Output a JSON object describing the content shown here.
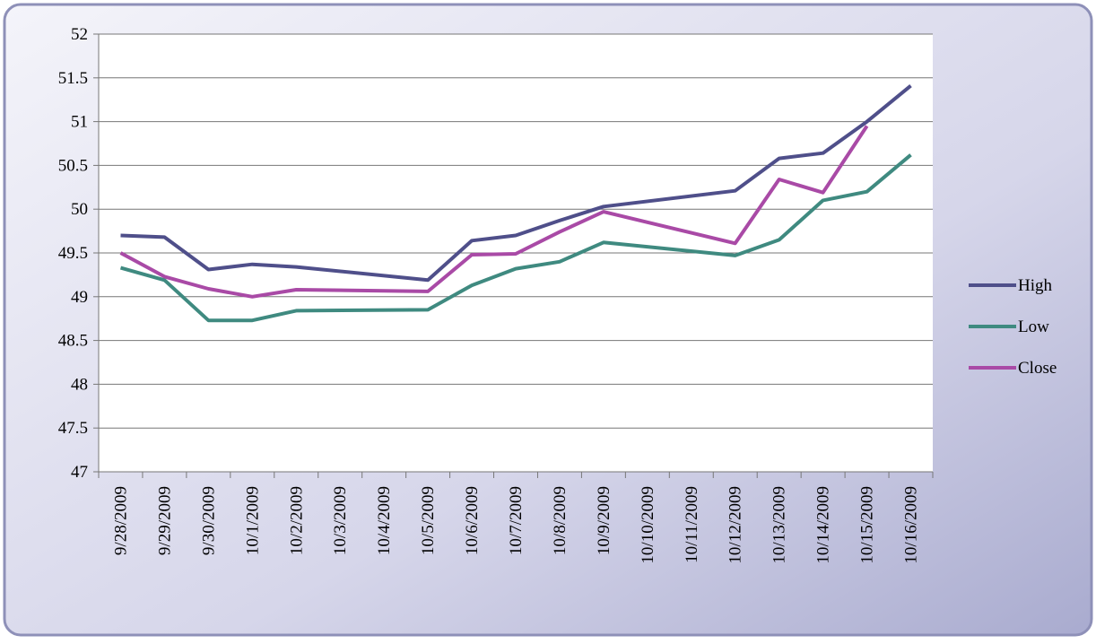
{
  "chart_data": {
    "type": "line",
    "categories": [
      "9/28/2009",
      "9/29/2009",
      "9/30/2009",
      "10/1/2009",
      "10/2/2009",
      "10/3/2009",
      "10/4/2009",
      "10/5/2009",
      "10/6/2009",
      "10/7/2009",
      "10/8/2009",
      "10/9/2009",
      "10/10/2009",
      "10/11/2009",
      "10/12/2009",
      "10/13/2009",
      "10/14/2009",
      "10/15/2009",
      "10/16/2009"
    ],
    "series": [
      {
        "name": "High",
        "color": "#4f4f8a",
        "x": [
          "9/28/2009",
          "9/29/2009",
          "9/30/2009",
          "10/1/2009",
          "10/2/2009",
          "10/5/2009",
          "10/6/2009",
          "10/7/2009",
          "10/8/2009",
          "10/9/2009",
          "10/12/2009",
          "10/13/2009",
          "10/14/2009",
          "10/15/2009",
          "10/16/2009"
        ],
        "values": [
          49.7,
          49.68,
          49.31,
          49.37,
          49.34,
          49.19,
          49.64,
          49.7,
          49.87,
          50.03,
          50.21,
          50.58,
          50.64,
          51.0,
          51.41
        ]
      },
      {
        "name": "Low",
        "color": "#3f8a80",
        "x": [
          "9/28/2009",
          "9/29/2009",
          "9/30/2009",
          "10/1/2009",
          "10/2/2009",
          "10/5/2009",
          "10/6/2009",
          "10/7/2009",
          "10/8/2009",
          "10/9/2009",
          "10/12/2009",
          "10/13/2009",
          "10/14/2009",
          "10/15/2009",
          "10/16/2009"
        ],
        "values": [
          49.33,
          49.19,
          48.73,
          48.73,
          48.84,
          48.85,
          49.13,
          49.32,
          49.4,
          49.62,
          49.47,
          49.65,
          50.1,
          50.2,
          50.62
        ]
      },
      {
        "name": "Close",
        "color": "#a94aa6",
        "x": [
          "9/28/2009",
          "9/29/2009",
          "9/30/2009",
          "10/1/2009",
          "10/2/2009",
          "10/5/2009",
          "10/6/2009",
          "10/7/2009",
          "10/8/2009",
          "10/9/2009",
          "10/12/2009",
          "10/13/2009",
          "10/14/2009",
          "10/15/2009"
        ],
        "values": [
          49.5,
          49.23,
          49.09,
          49.0,
          49.08,
          49.06,
          49.48,
          49.49,
          49.74,
          49.97,
          49.61,
          50.34,
          50.19,
          50.95
        ]
      }
    ],
    "ylim": [
      47,
      52
    ],
    "yticks": [
      47,
      47.5,
      48,
      48.5,
      49,
      49.5,
      50,
      50.5,
      51,
      51.5,
      52
    ],
    "grid": true,
    "legend": "right"
  }
}
